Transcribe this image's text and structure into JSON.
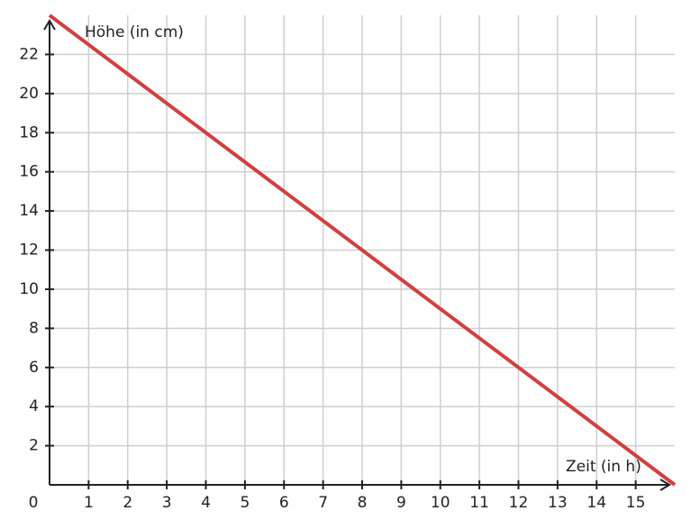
{
  "chart_data": {
    "type": "line",
    "x_label": "Zeit (in h)",
    "y_label": "Höhe (in cm)",
    "x": [
      0,
      16
    ],
    "series": [
      {
        "color": "#d04040",
        "values": [
          24,
          0
        ]
      }
    ],
    "xlim": [
      0,
      16
    ],
    "ylim": [
      0,
      24
    ],
    "xticks": [
      0,
      1,
      2,
      3,
      4,
      5,
      6,
      7,
      8,
      9,
      10,
      11,
      12,
      13,
      14,
      15
    ],
    "yticks": [
      2,
      4,
      6,
      8,
      10,
      12,
      14,
      16,
      18,
      20,
      22
    ],
    "grid": true
  }
}
